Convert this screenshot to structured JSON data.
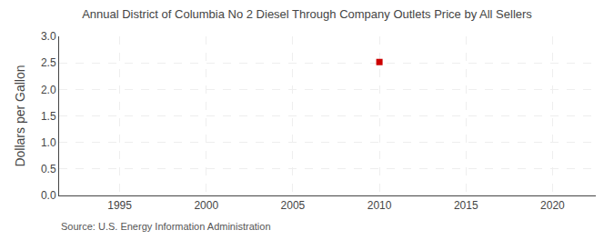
{
  "chart_data": {
    "type": "scatter",
    "title": "Annual District of Columbia No 2 Diesel Through Company Outlets Price by All Sellers",
    "ylabel": "Dollars per Gallon",
    "annotations": [
      "Source: U.S. Energy Information Administration"
    ],
    "x": [
      2010
    ],
    "values": [
      2.516
    ],
    "color": "#cc0000",
    "marker": "square",
    "xlim": [
      1991.5,
      2022.5
    ],
    "ylim": [
      0.0,
      3.0
    ],
    "xticks": [
      1995,
      2000,
      2005,
      2010,
      2015,
      2020
    ],
    "yticks": [
      {
        "value": 0.0,
        "label": "0.0"
      },
      0.5,
      {
        "value": 1.0,
        "label": "1.0"
      },
      1.5,
      {
        "value": 2.0,
        "label": "2.0"
      },
      2.5,
      {
        "value": 3.0,
        "label": "3.0"
      }
    ],
    "grid": true
  }
}
